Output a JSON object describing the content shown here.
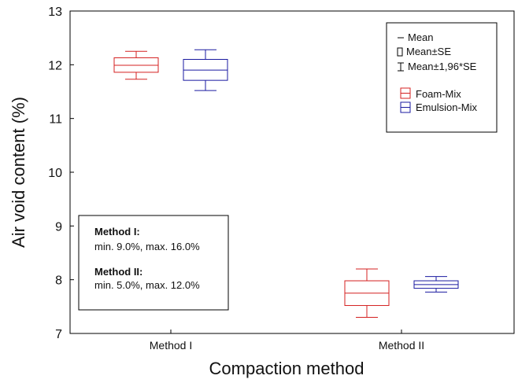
{
  "chart_data": {
    "type": "boxplot",
    "xlabel": "Compaction method",
    "ylabel": "Air void content (%)",
    "ylim": [
      7,
      13
    ],
    "yticks": [
      7,
      8,
      9,
      10,
      11,
      12,
      13
    ],
    "categories": [
      "Method I",
      "Method II"
    ],
    "grid": false,
    "legend_position": "top-right",
    "legend": {
      "stat_items": [
        "Mean",
        "Mean±SE",
        "Mean±1,96*SE"
      ],
      "series_items": [
        "Foam-Mix",
        "Emulsion-Mix"
      ]
    },
    "series": [
      {
        "name": "Foam-Mix",
        "color": "#d42020",
        "points": [
          {
            "category": "Method I",
            "mean": 11.99,
            "se_low": 11.86,
            "se_high": 12.13,
            "ci_low": 11.73,
            "ci_high": 12.25
          },
          {
            "category": "Method II",
            "mean": 7.75,
            "se_low": 7.52,
            "se_high": 7.98,
            "ci_low": 7.3,
            "ci_high": 8.2
          }
        ]
      },
      {
        "name": "Emulsion-Mix",
        "color": "#1a1aa0",
        "points": [
          {
            "category": "Method I",
            "mean": 11.9,
            "se_low": 11.71,
            "se_high": 12.1,
            "ci_low": 11.52,
            "ci_high": 12.28
          },
          {
            "category": "Method II",
            "mean": 7.91,
            "se_low": 7.84,
            "se_high": 7.98,
            "ci_low": 7.77,
            "ci_high": 8.06
          }
        ]
      }
    ],
    "annotation": {
      "lines": [
        {
          "text": "Method I:",
          "bold": true
        },
        {
          "text": "min. 9.0%, max. 16.0%",
          "bold": false
        },
        {
          "text": "Method II:",
          "bold": true
        },
        {
          "text": "min. 5.0%, max. 12.0%",
          "bold": false
        }
      ]
    }
  }
}
